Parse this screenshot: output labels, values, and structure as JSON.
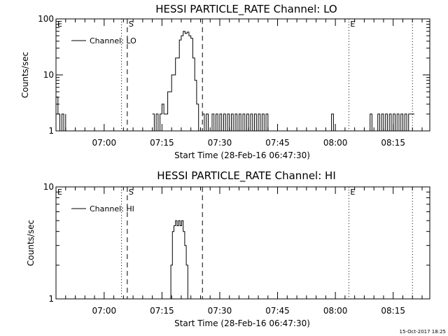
{
  "footer": {
    "timestamp": "15-Oct-2017 18:25"
  },
  "chart_data": [
    {
      "type": "line",
      "title": "HESSI PARTICLE_RATE Channel: LO",
      "xlabel": "Start Time (28-Feb-16 06:47:30)",
      "ylabel": "Counts/sec",
      "yscale": "log",
      "ylim": [
        1,
        100
      ],
      "yticks": [
        1,
        10,
        100
      ],
      "ytick_labels": [
        "1",
        "10",
        "100"
      ],
      "xlim_min": [
        0,
        97
      ],
      "xticks_min": [
        12.5,
        27.5,
        42.5,
        57.5,
        72.5,
        87.5
      ],
      "xtick_labels": [
        "07:00",
        "07:15",
        "07:30",
        "07:45",
        "08:00",
        "08:15"
      ],
      "legend": "Channel: LO",
      "markers": [
        {
          "label": "E",
          "t": 0,
          "style": "dotted"
        },
        {
          "label": "",
          "t": 17,
          "style": "dotted"
        },
        {
          "label": "S",
          "t": 18.5,
          "style": "dashed"
        },
        {
          "label": "",
          "t": 38,
          "style": "dashed"
        },
        {
          "label": "E",
          "t": 76,
          "style": "dotted"
        },
        {
          "label": "",
          "t": 92.5,
          "style": "dotted"
        }
      ],
      "series": [
        {
          "name": "Channel: LO",
          "segments": [
            {
              "t": [
                0,
                0.5,
                1,
                1.5,
                2,
                2.5
              ],
              "v": [
                4,
                2,
                1,
                2,
                1,
                2
              ]
            },
            {
              "t": [
                25,
                25.5,
                26,
                26.5,
                27,
                27.5,
                28,
                29,
                30,
                31,
                32,
                32.5,
                33,
                33.5,
                34,
                34.5,
                35,
                35.5,
                36,
                36.5,
                37
              ],
              "v": [
                2,
                1,
                2,
                1,
                2,
                3,
                2,
                5,
                10,
                20,
                42,
                50,
                60,
                55,
                58,
                50,
                45,
                20,
                8,
                3,
                1
              ]
            },
            {
              "t": [
                38,
                38.5,
                39,
                39.5
              ],
              "v": [
                2,
                1,
                2,
                1
              ]
            },
            {
              "t": [
                40,
                40.5,
                41,
                41.5,
                42,
                42.5,
                43,
                43.5,
                44,
                44.5,
                45,
                45.5,
                46,
                46.5,
                47,
                47.5,
                48,
                48.5,
                49,
                49.5,
                50,
                50.5,
                51,
                51.5,
                52,
                52.5,
                53,
                53.5,
                54,
                54.5,
                55
              ],
              "v": [
                1,
                2,
                1,
                2,
                1,
                2,
                1,
                2,
                1,
                2,
                1,
                2,
                1,
                2,
                1,
                2,
                1,
                2,
                1,
                2,
                1,
                2,
                1,
                2,
                1,
                2,
                1,
                2,
                1,
                2,
                1
              ]
            },
            {
              "t": [
                71,
                71.5,
                72
              ],
              "v": [
                1,
                2,
                1
              ]
            },
            {
              "t": [
                81,
                81.5,
                82,
                83,
                83.5,
                84,
                84.5,
                85,
                85.5,
                86,
                86.5,
                87,
                87.5,
                88,
                88.5,
                89,
                89.5,
                90,
                90.5,
                91,
                91.5,
                92,
                92.5,
                93
              ],
              "v": [
                1,
                2,
                1,
                1,
                2,
                1,
                2,
                1,
                2,
                1,
                2,
                1,
                2,
                1,
                2,
                1,
                2,
                1,
                2,
                1,
                2,
                2,
                2,
                2
              ]
            }
          ]
        }
      ]
    },
    {
      "type": "line",
      "title": "HESSI PARTICLE_RATE Channel: HI",
      "xlabel": "Start Time (28-Feb-16 06:47:30)",
      "ylabel": "Counts/sec",
      "yscale": "log",
      "ylim": [
        1,
        10
      ],
      "yticks": [
        1,
        10
      ],
      "ytick_labels": [
        "1",
        "10"
      ],
      "xlim_min": [
        0,
        97
      ],
      "xticks_min": [
        12.5,
        27.5,
        42.5,
        57.5,
        72.5,
        87.5
      ],
      "xtick_labels": [
        "07:00",
        "07:15",
        "07:30",
        "07:45",
        "08:00",
        "08:15"
      ],
      "legend": "Channel: HI",
      "markers": [
        {
          "label": "E",
          "t": 0,
          "style": "dotted"
        },
        {
          "label": "",
          "t": 17,
          "style": "dotted"
        },
        {
          "label": "S",
          "t": 18.5,
          "style": "dashed"
        },
        {
          "label": "",
          "t": 38,
          "style": "dashed"
        },
        {
          "label": "E",
          "t": 76,
          "style": "dotted"
        },
        {
          "label": "",
          "t": 92.5,
          "style": "dotted"
        }
      ],
      "series": [
        {
          "name": "Channel: HI",
          "segments": [
            {
              "t": [
                29.5,
                29.8,
                30.2,
                30.6,
                31,
                31.4,
                31.8,
                32.2,
                32.6,
                33,
                33.4,
                33.8,
                34.2
              ],
              "v": [
                1,
                2,
                4,
                4.5,
                5,
                4.5,
                5,
                4.5,
                5,
                4,
                3,
                2,
                1
              ]
            }
          ]
        }
      ]
    }
  ]
}
